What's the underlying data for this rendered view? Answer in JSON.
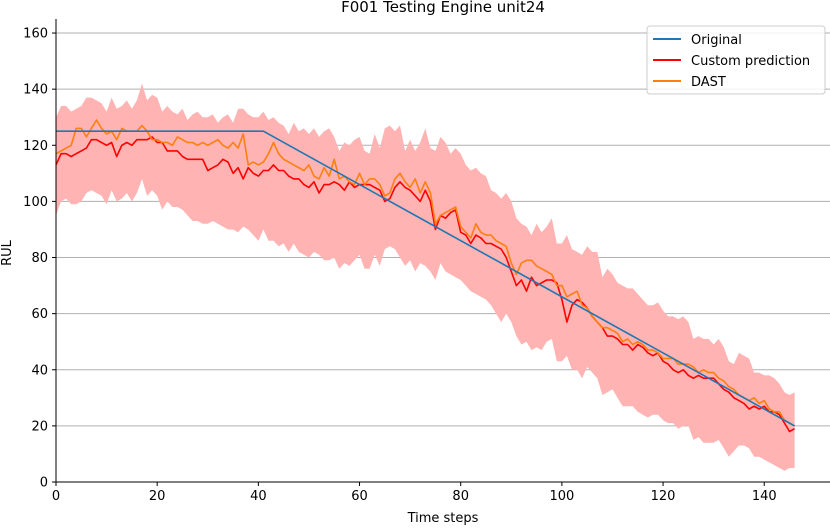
{
  "chart_data": {
    "type": "line",
    "title": "F001 Testing Engine unit24",
    "xlabel": "Time steps",
    "ylabel": "RUL",
    "xlim": [
      0,
      153
    ],
    "ylim": [
      0,
      165
    ],
    "xticks": [
      0,
      20,
      40,
      60,
      80,
      100,
      120,
      140
    ],
    "yticks": [
      0,
      20,
      40,
      60,
      80,
      100,
      120,
      140,
      160
    ],
    "grid": "horizontal",
    "legend_position": "top-right",
    "colors": {
      "original": "#1f77b4",
      "custom": "#ff0000",
      "dast": "#ff7f0e",
      "band": "#ffb3b3",
      "grid": "#b0b0b0"
    },
    "series": [
      {
        "name": "Original",
        "x": [
          0,
          41,
          146
        ],
        "y": [
          125,
          125,
          20
        ]
      },
      {
        "name": "Custom prediction",
        "x": [
          0,
          1,
          2,
          3,
          4,
          5,
          6,
          7,
          8,
          9,
          10,
          11,
          12,
          13,
          14,
          15,
          16,
          17,
          18,
          19,
          20,
          21,
          22,
          23,
          24,
          25,
          26,
          27,
          28,
          29,
          30,
          31,
          32,
          33,
          34,
          35,
          36,
          37,
          38,
          39,
          40,
          41,
          42,
          43,
          44,
          45,
          46,
          47,
          48,
          49,
          50,
          51,
          52,
          53,
          54,
          55,
          56,
          57,
          58,
          59,
          60,
          61,
          62,
          63,
          64,
          65,
          66,
          67,
          68,
          69,
          70,
          71,
          72,
          73,
          74,
          75,
          76,
          77,
          78,
          79,
          80,
          81,
          82,
          83,
          84,
          85,
          86,
          87,
          88,
          89,
          90,
          91,
          92,
          93,
          94,
          95,
          96,
          97,
          98,
          99,
          100,
          101,
          102,
          103,
          104,
          105,
          106,
          107,
          108,
          109,
          110,
          111,
          112,
          113,
          114,
          115,
          116,
          117,
          118,
          119,
          120,
          121,
          122,
          123,
          124,
          125,
          126,
          127,
          128,
          129,
          130,
          131,
          132,
          133,
          134,
          135,
          136,
          137,
          138,
          139,
          140,
          141,
          142,
          143,
          144,
          145,
          146
        ],
        "y": [
          113,
          117,
          117,
          116,
          117,
          118,
          119,
          122,
          122,
          121,
          120,
          121,
          116,
          120,
          121,
          120,
          122,
          122,
          122,
          123,
          121,
          121,
          118,
          118,
          118,
          116,
          115,
          115,
          115,
          115,
          111,
          112,
          113,
          115,
          114,
          110,
          112,
          108,
          112,
          110,
          109,
          111,
          111,
          113,
          111,
          111,
          109,
          108,
          108,
          106,
          105,
          107,
          103,
          106,
          106,
          107,
          106,
          104,
          107,
          105,
          106,
          106,
          106,
          105,
          104,
          100,
          101,
          105,
          107,
          105,
          104,
          102,
          100,
          104,
          100,
          90,
          95,
          94,
          96,
          97,
          89,
          88,
          85,
          88,
          87,
          85,
          85,
          84,
          83,
          80,
          75,
          70,
          72,
          68,
          73,
          70,
          71,
          72,
          72,
          71,
          65,
          57,
          63,
          65,
          64,
          62,
          59,
          57,
          55,
          52,
          52,
          51,
          49,
          49,
          47,
          49,
          48,
          46,
          45,
          46,
          43,
          42,
          40,
          39,
          40,
          38,
          37,
          38,
          37,
          37,
          37,
          35,
          33,
          32,
          30,
          29,
          28,
          26,
          27,
          26,
          27,
          25,
          25,
          24,
          21,
          18,
          19
        ]
      },
      {
        "name": "DAST",
        "x": [
          0,
          1,
          2,
          3,
          4,
          5,
          6,
          7,
          8,
          9,
          10,
          11,
          12,
          13,
          14,
          15,
          16,
          17,
          18,
          19,
          20,
          21,
          22,
          23,
          24,
          25,
          26,
          27,
          28,
          29,
          30,
          31,
          32,
          33,
          34,
          35,
          36,
          37,
          38,
          39,
          40,
          41,
          42,
          43,
          44,
          45,
          46,
          47,
          48,
          49,
          50,
          51,
          52,
          53,
          54,
          55,
          56,
          57,
          58,
          59,
          60,
          61,
          62,
          63,
          64,
          65,
          66,
          67,
          68,
          69,
          70,
          71,
          72,
          73,
          74,
          75,
          76,
          77,
          78,
          79,
          80,
          81,
          82,
          83,
          84,
          85,
          86,
          87,
          88,
          89,
          90,
          91,
          92,
          93,
          94,
          95,
          96,
          97,
          98,
          99,
          100,
          101,
          102,
          103,
          104,
          105,
          106,
          107,
          108,
          109,
          110,
          111,
          112,
          113,
          114,
          115,
          116,
          117,
          118,
          119,
          120,
          121,
          122,
          123,
          124,
          125,
          126,
          127,
          128,
          129,
          130,
          131,
          132,
          133,
          134,
          135,
          136,
          137,
          138,
          139,
          140,
          141,
          142,
          143,
          144,
          145,
          146
        ],
        "y": [
          117,
          118,
          119,
          120,
          126,
          126,
          123,
          126,
          129,
          126,
          124,
          125,
          122,
          126,
          125,
          125,
          125,
          127,
          125,
          122,
          122,
          121,
          121,
          120,
          123,
          122,
          121,
          121,
          120,
          121,
          120,
          121,
          122,
          120,
          119,
          121,
          119,
          124,
          113,
          114,
          113,
          114,
          117,
          121,
          117,
          115,
          114,
          113,
          112,
          111,
          113,
          109,
          108,
          112,
          109,
          115,
          108,
          109,
          107,
          106,
          110,
          106,
          108,
          108,
          106,
          102,
          103,
          108,
          110,
          107,
          105,
          108,
          103,
          107,
          103,
          92,
          95,
          96,
          97,
          98,
          91,
          89,
          87,
          92,
          89,
          88,
          88,
          86,
          85,
          84,
          78,
          74,
          78,
          79,
          79,
          77,
          76,
          75,
          74,
          70,
          70,
          66,
          67,
          68,
          63,
          62,
          59,
          57,
          55,
          55,
          54,
          53,
          50,
          51,
          49,
          50,
          49,
          47,
          47,
          46,
          44,
          44,
          44,
          42,
          42,
          42,
          41,
          39,
          40,
          39,
          39,
          37,
          36,
          34,
          33,
          31,
          30,
          29,
          30,
          28,
          29,
          26,
          25,
          25,
          22,
          21,
          20
        ]
      }
    ],
    "band": {
      "x": [
        0,
        1,
        2,
        3,
        4,
        5,
        6,
        7,
        8,
        9,
        10,
        11,
        12,
        13,
        14,
        15,
        16,
        17,
        18,
        19,
        20,
        21,
        22,
        23,
        24,
        25,
        26,
        27,
        28,
        29,
        30,
        31,
        32,
        33,
        34,
        35,
        36,
        37,
        38,
        39,
        40,
        41,
        42,
        43,
        44,
        45,
        46,
        47,
        48,
        49,
        50,
        51,
        52,
        53,
        54,
        55,
        56,
        57,
        58,
        59,
        60,
        61,
        62,
        63,
        64,
        65,
        66,
        67,
        68,
        69,
        70,
        71,
        72,
        73,
        74,
        75,
        76,
        77,
        78,
        79,
        80,
        81,
        82,
        83,
        84,
        85,
        86,
        87,
        88,
        89,
        90,
        91,
        92,
        93,
        94,
        95,
        96,
        97,
        98,
        99,
        100,
        101,
        102,
        103,
        104,
        105,
        106,
        107,
        108,
        109,
        110,
        111,
        112,
        113,
        114,
        115,
        116,
        117,
        118,
        119,
        120,
        121,
        122,
        123,
        124,
        125,
        126,
        127,
        128,
        129,
        130,
        131,
        132,
        133,
        134,
        135,
        136,
        137,
        138,
        139,
        140,
        141,
        142,
        143,
        144,
        145,
        146
      ],
      "upper": [
        130,
        134,
        134,
        132,
        133,
        134,
        137,
        137,
        136,
        135,
        132,
        137,
        133,
        134,
        136,
        133,
        136,
        142,
        136,
        138,
        137,
        132,
        134,
        132,
        131,
        133,
        129,
        131,
        132,
        130,
        130,
        131,
        128,
        130,
        131,
        128,
        133,
        133,
        131,
        130,
        130,
        132,
        129,
        130,
        128,
        127,
        124,
        128,
        125,
        126,
        124,
        126,
        123,
        125,
        126,
        123,
        118,
        121,
        120,
        122,
        123,
        118,
        117,
        124,
        119,
        126,
        127,
        125,
        127,
        118,
        122,
        118,
        121,
        126,
        119,
        118,
        123,
        121,
        117,
        119,
        117,
        113,
        111,
        112,
        110,
        109,
        104,
        103,
        101,
        103,
        100,
        94,
        92,
        91,
        88,
        92,
        89,
        91,
        94,
        85,
        85,
        88,
        83,
        82,
        81,
        84,
        82,
        82,
        73,
        76,
        74,
        71,
        70,
        69,
        69,
        67,
        65,
        63,
        63,
        64,
        61,
        59,
        59,
        58,
        59,
        57,
        51,
        52,
        51,
        51,
        49,
        51,
        48,
        43,
        42,
        46,
        45,
        44,
        39,
        39,
        38,
        38,
        37,
        35,
        32,
        31,
        32
      ],
      "lower": [
        95,
        100,
        101,
        99,
        99,
        100,
        103,
        104,
        103,
        102,
        99,
        104,
        100,
        101,
        103,
        100,
        103,
        108,
        102,
        104,
        102,
        97,
        100,
        98,
        98,
        97,
        95,
        93,
        93,
        92,
        92,
        93,
        92,
        91,
        90,
        90,
        89,
        91,
        90,
        88,
        86,
        90,
        86,
        86,
        84,
        85,
        82,
        85,
        82,
        81,
        80,
        82,
        81,
        79,
        79,
        80,
        76,
        78,
        77,
        79,
        81,
        76,
        76,
        81,
        77,
        83,
        84,
        83,
        80,
        77,
        79,
        75,
        78,
        77,
        75,
        72,
        78,
        75,
        74,
        73,
        72,
        70,
        68,
        67,
        66,
        65,
        63,
        60,
        57,
        60,
        57,
        52,
        49,
        50,
        47,
        48,
        47,
        50,
        51,
        43,
        43,
        45,
        40,
        40,
        37,
        41,
        39,
        37,
        31,
        32,
        33,
        30,
        27,
        27,
        27,
        25,
        24,
        23,
        24,
        24,
        22,
        21,
        21,
        19,
        20,
        20,
        15,
        16,
        14,
        14,
        14,
        15,
        12,
        9,
        11,
        13,
        13,
        12,
        9,
        9,
        8,
        7,
        6,
        5,
        4,
        5,
        5
      ]
    }
  }
}
